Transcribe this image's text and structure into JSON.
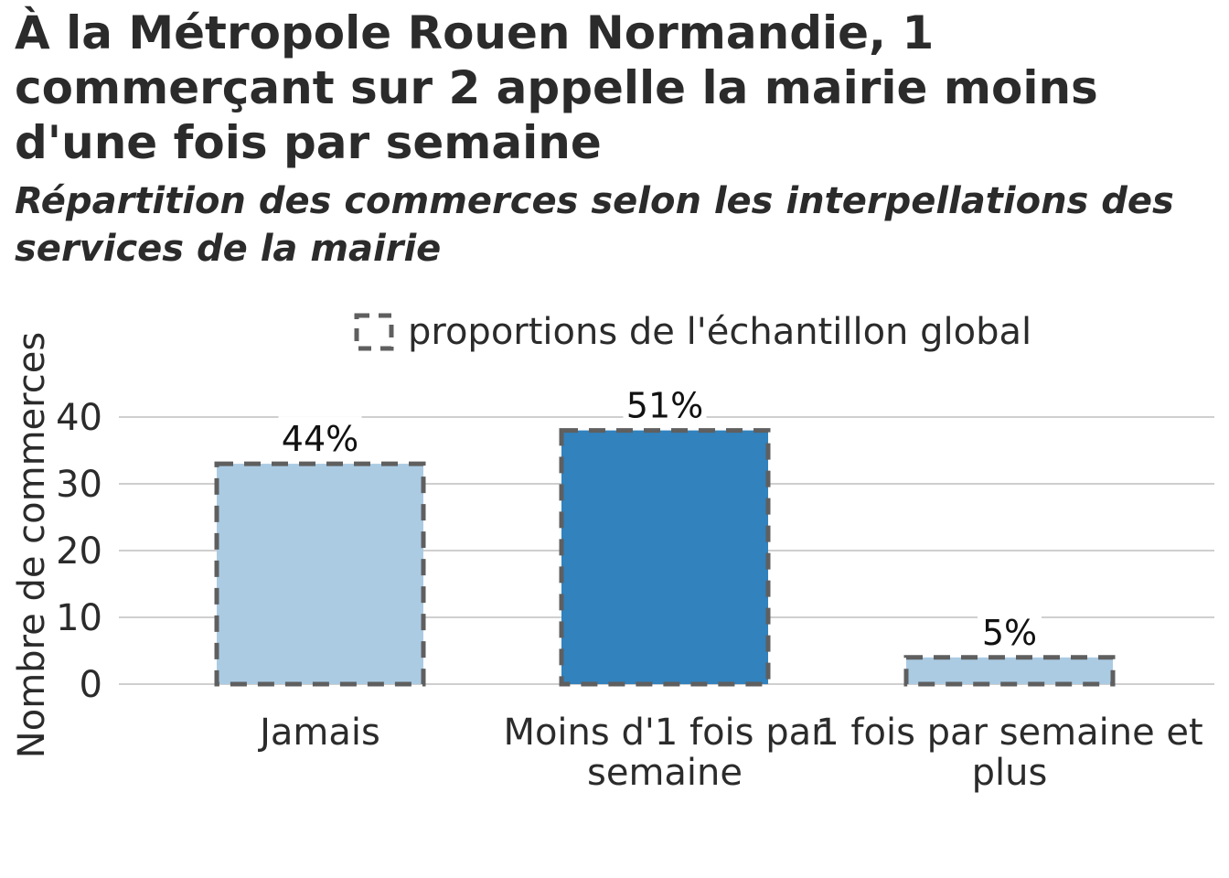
{
  "title": "À la Métropole Rouen Normandie, 1 commerçant sur 2 appelle la mairie moins d'une fois par semaine",
  "subtitle": "Répartition des commerces selon les interpellations des services de la mairie",
  "colors": {
    "light_bar": "#abcbe3",
    "dark_bar": "#3182bd",
    "reference_outline": "#5f5f5f",
    "grid": "#cfcfcf",
    "text": "#2b2b2b"
  },
  "chart_data": {
    "type": "bar",
    "categories": [
      "Jamais",
      "Moins d'1 fois par semaine",
      "1 fois par semaine et plus"
    ],
    "category_label_lines": [
      [
        "Jamais"
      ],
      [
        "Moins d'1 fois par",
        "semaine"
      ],
      [
        "1 fois par semaine et",
        "plus"
      ]
    ],
    "values": [
      33,
      38,
      4
    ],
    "data_labels": [
      "44%",
      "51%",
      "5%"
    ],
    "reference_values": [
      33,
      38,
      4
    ],
    "reference_legend": "proportions de l'échantillon global",
    "highlighted": [
      false,
      true,
      false
    ],
    "ylabel": "Nombre de commerces",
    "xlabel": "",
    "ylim": [
      0,
      40
    ],
    "yticks": [
      0,
      10,
      20,
      30,
      40
    ],
    "grid": true,
    "legend_position": "top"
  }
}
